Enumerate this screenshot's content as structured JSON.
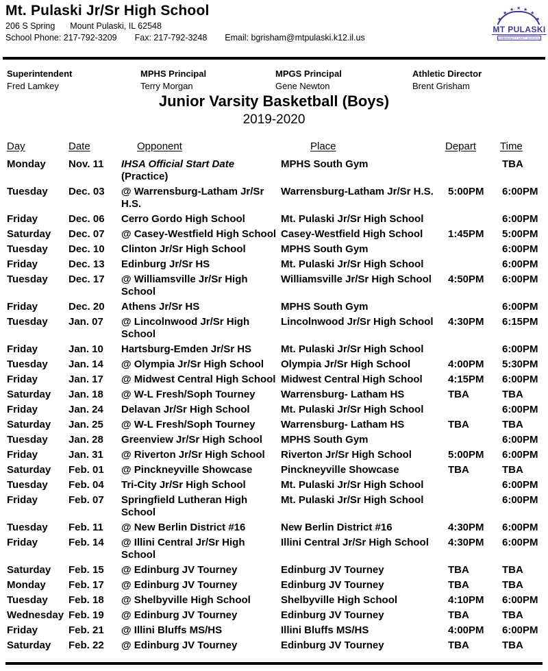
{
  "school": {
    "name": "Mt. Pulaski Jr/Sr High School",
    "address_street": "206 S Spring",
    "address_city": "Mount Pulaski, IL  62548",
    "phone": "School Phone: 217-792-3209",
    "fax": "Fax: 217-792-3248",
    "email": "Email: bgrisham@mtpulaski.k12.il.us",
    "logo": {
      "text": "MT PULASKI",
      "tagline": "COMMUNITY UNIT SCHOOL DISTRICT",
      "color": "#3d3a94"
    }
  },
  "icons": {
    "star": "★"
  },
  "staff": [
    {
      "title": "Superintendent",
      "name": "Fred Lamkey"
    },
    {
      "title": "MPHS Principal",
      "name": "Terry Morgan"
    },
    {
      "title": "MPGS Principal",
      "name": "Gene Newton"
    },
    {
      "title": "Athletic Director",
      "name": "Brent Grisham"
    }
  ],
  "event": {
    "title": "Junior Varsity Basketball (Boys)",
    "season": "2019-2020"
  },
  "schedule": {
    "columns": [
      "Day",
      "Date",
      "Opponent",
      "Place",
      "Depart",
      "Time"
    ],
    "rows": [
      {
        "day": "Monday",
        "date": "Nov. 11",
        "opponent": "IHSA Official Start Date",
        "note": "(Practice)",
        "italic": true,
        "place": "MPHS South Gym",
        "depart": "",
        "time": "TBA"
      },
      {
        "day": "Tuesday",
        "date": "Dec. 03",
        "opponent": "@ Warrensburg-Latham Jr/Sr\nH.S.",
        "place": "Warrensburg-Latham Jr/Sr H.S.",
        "depart": "5:00PM",
        "time": "6:00PM"
      },
      {
        "day": "Friday",
        "date": "Dec. 06",
        "opponent": "Cerro Gordo High School",
        "place": "Mt. Pulaski Jr/Sr High School",
        "depart": "",
        "time": "6:00PM"
      },
      {
        "day": "Saturday",
        "date": "Dec. 07",
        "opponent": "@ Casey-Westfield High School",
        "place": "Casey-Westfield High School",
        "depart": "1:45PM",
        "time": "5:00PM"
      },
      {
        "day": "Tuesday",
        "date": "Dec. 10",
        "opponent": "Clinton Jr/Sr High School",
        "place": "MPHS South Gym",
        "depart": "",
        "time": "6:00PM"
      },
      {
        "day": "Friday",
        "date": "Dec. 13",
        "opponent": "Edinburg Jr/Sr HS",
        "place": "Mt. Pulaski Jr/Sr High School",
        "depart": "",
        "time": "6:00PM"
      },
      {
        "day": "Tuesday",
        "date": "Dec. 17",
        "opponent": "@ Williamsville Jr/Sr High\nSchool",
        "place": "Williamsville Jr/Sr High School",
        "depart": "4:50PM",
        "time": "6:00PM"
      },
      {
        "day": "Friday",
        "date": "Dec. 20",
        "opponent": "Athens Jr/Sr HS",
        "place": "MPHS South Gym",
        "depart": "",
        "time": "6:00PM"
      },
      {
        "day": "Tuesday",
        "date": "Jan. 07",
        "opponent": "@ Lincolnwood Jr/Sr High\nSchool",
        "place": "Lincolnwood Jr/Sr High School",
        "depart": "4:30PM",
        "time": "6:15PM"
      },
      {
        "day": "Friday",
        "date": "Jan. 10",
        "opponent": "Hartsburg-Emden Jr/Sr HS",
        "place": "Mt. Pulaski Jr/Sr High School",
        "depart": "",
        "time": "6:00PM"
      },
      {
        "day": "Tuesday",
        "date": "Jan. 14",
        "opponent": "@ Olympia Jr/Sr High School",
        "place": "Olympia Jr/Sr High School",
        "depart": "4:00PM",
        "time": "5:30PM"
      },
      {
        "day": "Friday",
        "date": "Jan. 17",
        "opponent": "@ Midwest Central High School",
        "place": "Midwest Central High School",
        "depart": "4:15PM",
        "time": "6:00PM"
      },
      {
        "day": "Saturday",
        "date": "Jan. 18",
        "opponent": "@ W-L Fresh/Soph Tourney",
        "place": "Warrensburg- Latham HS",
        "depart": "TBA",
        "time": "TBA"
      },
      {
        "day": "Friday",
        "date": "Jan. 24",
        "opponent": "Delavan Jr/Sr High School",
        "place": "Mt. Pulaski Jr/Sr High School",
        "depart": "",
        "time": "6:00PM"
      },
      {
        "day": "Saturday",
        "date": "Jan. 25",
        "opponent": "@ W-L Fresh/Soph Tourney",
        "place": "Warrensburg- Latham HS",
        "depart": "TBA",
        "time": "TBA"
      },
      {
        "day": "Tuesday",
        "date": "Jan. 28",
        "opponent": "Greenview Jr/Sr High School",
        "place": "MPHS South Gym",
        "depart": "",
        "time": "6:00PM"
      },
      {
        "day": "Friday",
        "date": "Jan. 31",
        "opponent": "@ Riverton Jr/Sr High School",
        "place": "Riverton Jr/Sr High School",
        "depart": "5:00PM",
        "time": "6:00PM"
      },
      {
        "day": "Saturday",
        "date": "Feb. 01",
        "opponent": "@ Pinckneyville Showcase",
        "place": "Pinckneyville Showcase",
        "depart": "TBA",
        "time": "TBA"
      },
      {
        "day": "Tuesday",
        "date": "Feb. 04",
        "opponent": "Tri-City Jr/Sr High School",
        "place": "Mt. Pulaski Jr/Sr High School",
        "depart": "",
        "time": "6:00PM"
      },
      {
        "day": "Friday",
        "date": "Feb. 07",
        "opponent": "Springfield Lutheran High\nSchool",
        "place": "Mt. Pulaski Jr/Sr High School",
        "depart": "",
        "time": "6:00PM"
      },
      {
        "day": "Tuesday",
        "date": "Feb. 11",
        "opponent": "@ New Berlin District #16",
        "place": "New Berlin District #16",
        "depart": "4:30PM",
        "time": "6:00PM"
      },
      {
        "day": "Friday",
        "date": "Feb. 14",
        "opponent": "@ Illini Central Jr/Sr High\nSchool",
        "place": "Illini Central Jr/Sr High School",
        "depart": "4:30PM",
        "time": "6:00PM"
      },
      {
        "day": "Saturday",
        "date": "Feb. 15",
        "opponent": "@ Edinburg JV Tourney",
        "place": "Edinburg JV Tourney",
        "depart": "TBA",
        "time": "TBA"
      },
      {
        "day": "Monday",
        "date": "Feb. 17",
        "opponent": "@ Edinburg JV Tourney",
        "place": "Edinburg JV Tourney",
        "depart": "TBA",
        "time": "TBA"
      },
      {
        "day": "Tuesday",
        "date": "Feb. 18",
        "opponent": "@ Shelbyville High School",
        "place": "Shelbyville High School",
        "depart": "4:10PM",
        "time": "6:00PM"
      },
      {
        "day": "Wednesday",
        "date": "Feb. 19",
        "opponent": "@ Edinburg JV Tourney",
        "place": "Edinburg JV Tourney",
        "depart": "TBA",
        "time": "TBA"
      },
      {
        "day": "Friday",
        "date": "Feb. 21",
        "opponent": "@ Illini Bluffs MS/HS",
        "place": "Illini Bluffs MS/HS",
        "depart": "4:00PM",
        "time": "6:00PM"
      },
      {
        "day": "Saturday",
        "date": "Feb. 22",
        "opponent": "@ Edinburg JV Tourney",
        "place": "Edinburg JV Tourney",
        "depart": "TBA",
        "time": "TBA"
      }
    ]
  }
}
